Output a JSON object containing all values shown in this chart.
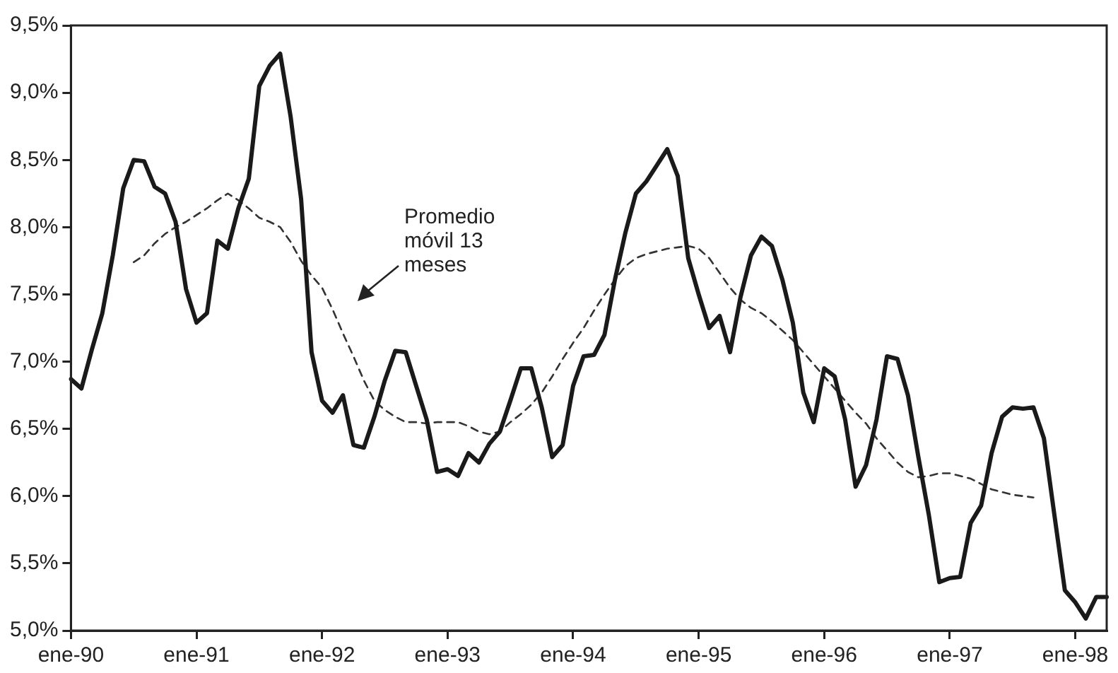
{
  "chart_data": {
    "type": "line",
    "categories": [
      "ene-90",
      null,
      null,
      null,
      null,
      null,
      null,
      null,
      null,
      null,
      null,
      null,
      "ene-91",
      null,
      null,
      null,
      null,
      null,
      null,
      null,
      null,
      null,
      null,
      null,
      "ene-92",
      null,
      null,
      null,
      null,
      null,
      null,
      null,
      null,
      null,
      null,
      null,
      "ene-93",
      null,
      null,
      null,
      null,
      null,
      null,
      null,
      null,
      null,
      null,
      null,
      "ene-94",
      null,
      null,
      null,
      null,
      null,
      null,
      null,
      null,
      null,
      null,
      null,
      "ene-95",
      null,
      null,
      null,
      null,
      null,
      null,
      null,
      null,
      null,
      null,
      null,
      "ene-96",
      null,
      null,
      null,
      null,
      null,
      null,
      null,
      null,
      null,
      null,
      null,
      "ene-97",
      null,
      null,
      null,
      null,
      null,
      null,
      null,
      null,
      null,
      null,
      null,
      "ene-98",
      null,
      null,
      null
    ],
    "series": [
      {
        "color": "#1a1a1a",
        "line_style": "solid",
        "values": [
          6.87,
          6.8,
          7.09,
          7.36,
          7.79,
          8.29,
          8.5,
          8.49,
          8.3,
          8.25,
          8.04,
          7.54,
          7.29,
          7.36,
          7.9,
          7.84,
          8.14,
          8.36,
          9.05,
          9.2,
          9.29,
          8.82,
          8.21,
          7.07,
          6.71,
          6.62,
          6.75,
          6.38,
          6.36,
          6.59,
          6.86,
          7.08,
          7.07,
          6.82,
          6.57,
          6.18,
          6.2,
          6.15,
          6.32,
          6.25,
          6.39,
          6.48,
          6.71,
          6.95,
          6.95,
          6.66,
          6.29,
          6.38,
          6.82,
          7.04,
          7.05,
          7.2,
          7.61,
          7.96,
          8.25,
          8.34,
          8.46,
          8.58,
          8.38,
          7.77,
          7.5,
          7.25,
          7.34,
          7.07,
          7.48,
          7.79,
          7.93,
          7.86,
          7.61,
          7.29,
          6.77,
          6.55,
          6.95,
          6.89,
          6.57,
          6.07,
          6.23,
          6.57,
          7.04,
          7.02,
          6.75,
          6.29,
          5.86,
          5.36,
          5.39,
          5.4,
          5.8,
          5.93,
          6.32,
          6.59,
          6.66,
          6.65,
          6.66,
          6.43,
          5.86,
          5.3,
          5.21,
          5.09,
          5.25,
          5.25
        ]
      },
      {
        "color": "#333333",
        "line_style": "dashed",
        "values": [
          null,
          null,
          null,
          null,
          null,
          null,
          7.74,
          7.79,
          7.88,
          7.95,
          8.0,
          8.04,
          8.09,
          8.14,
          8.2,
          8.25,
          8.2,
          8.14,
          8.07,
          8.04,
          8.0,
          7.89,
          7.75,
          7.64,
          7.55,
          7.39,
          7.21,
          7.04,
          6.86,
          6.71,
          6.64,
          6.59,
          6.55,
          6.55,
          6.54,
          6.55,
          6.55,
          6.55,
          6.52,
          6.48,
          6.46,
          6.48,
          6.55,
          6.61,
          6.68,
          6.77,
          6.89,
          7.02,
          7.14,
          7.25,
          7.38,
          7.5,
          7.61,
          7.71,
          7.77,
          7.8,
          7.82,
          7.84,
          7.85,
          7.86,
          7.84,
          7.77,
          7.66,
          7.55,
          7.46,
          7.4,
          7.36,
          7.3,
          7.23,
          7.16,
          7.07,
          6.98,
          6.89,
          6.8,
          6.71,
          6.62,
          6.54,
          6.43,
          6.34,
          6.25,
          6.18,
          6.14,
          6.15,
          6.17,
          6.17,
          6.15,
          6.13,
          6.09,
          6.05,
          6.03,
          6.01,
          6.0,
          5.99,
          null,
          null,
          null,
          null,
          null,
          null,
          null
        ]
      }
    ],
    "ylim": [
      5,
      9.5
    ],
    "yticks": [
      {
        "value": 5,
        "label": "5,0%"
      },
      {
        "value": 5.5,
        "label": "5,5%"
      },
      {
        "value": 6,
        "label": "6,0%"
      },
      {
        "value": 6.5,
        "label": "6,5%"
      },
      {
        "value": 7,
        "label": "7,0%"
      },
      {
        "value": 7.5,
        "label": "7,5%"
      },
      {
        "value": 8,
        "label": "8,0%"
      },
      {
        "value": 8.5,
        "label": "8,5%"
      },
      {
        "value": 9,
        "label": "9,0%"
      },
      {
        "value": 9.5,
        "label": "9,5%"
      }
    ],
    "annotations": [
      "Promedio móvil 13 meses"
    ],
    "grid": false,
    "legend": false,
    "marker": "none"
  }
}
